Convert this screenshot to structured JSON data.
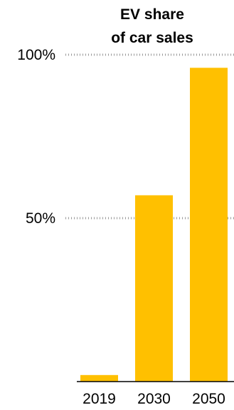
{
  "chart_data": {
    "type": "bar",
    "title_lines": [
      "EV share",
      "of car sales"
    ],
    "categories": [
      "2019",
      "2030",
      "2050"
    ],
    "values": [
      2,
      57,
      96
    ],
    "ylim": [
      0,
      100
    ],
    "y_ticks": [
      {
        "value": 50,
        "label": "50%"
      },
      {
        "value": 100,
        "label": "100%"
      }
    ],
    "gridlines": "dotted",
    "bar_color": "#FFC000",
    "axis_color": "#000000",
    "grid_color": "#999999"
  }
}
